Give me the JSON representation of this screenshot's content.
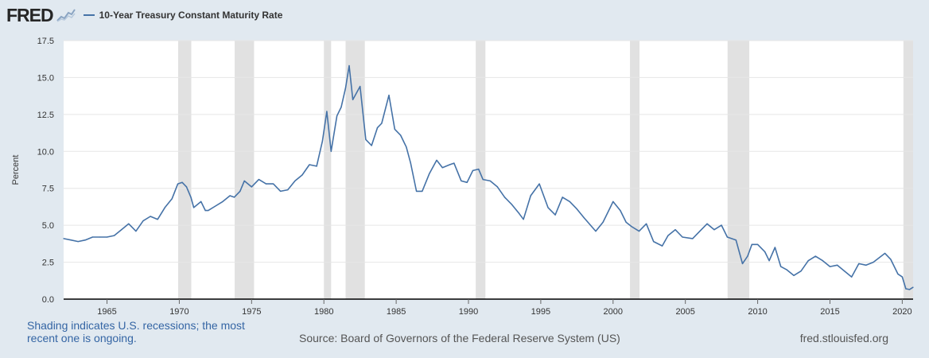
{
  "header": {
    "logo_text": "FRED",
    "logo_icon": "chart-line-icon",
    "series_legend": "10-Year Treasury Constant Maturity Rate"
  },
  "footer": {
    "note": "Shading indicates U.S. recessions; the most recent one is ongoing.",
    "source": "Source: Board of Governors of the Federal Reserve System (US)",
    "url": "fred.stlouisfed.org"
  },
  "colors": {
    "line": "#4572a7",
    "recession": "#e1e1e1",
    "background": "#e1e9f0",
    "plot": "#ffffff",
    "grid": "#e6e6e6"
  },
  "chart_data": {
    "type": "line",
    "title": "",
    "xlabel": "",
    "ylabel": "Percent",
    "xlim": [
      1962.0,
      2020.75
    ],
    "ylim": [
      0,
      17.5
    ],
    "xticks": [
      1965,
      1970,
      1975,
      1980,
      1985,
      1990,
      1995,
      2000,
      2005,
      2010,
      2015,
      2020
    ],
    "yticks": [
      0.0,
      2.5,
      5.0,
      7.5,
      10.0,
      12.5,
      15.0,
      17.5
    ],
    "ytick_labels": [
      "0.0",
      "2.5",
      "5.0",
      "7.5",
      "10.0",
      "12.5",
      "15.0",
      "17.5"
    ],
    "grid": true,
    "legend": "top-left",
    "recessions": [
      [
        1969.92,
        1970.83
      ],
      [
        1973.83,
        1975.17
      ],
      [
        1980.0,
        1980.5
      ],
      [
        1981.5,
        1982.83
      ],
      [
        1990.5,
        1991.17
      ],
      [
        2001.17,
        2001.83
      ],
      [
        2007.92,
        2009.42
      ],
      [
        2020.08,
        2020.75
      ]
    ],
    "series": [
      {
        "name": "10-Year Treasury Constant Maturity Rate",
        "x": [
          1962.0,
          1962.5,
          1963.0,
          1963.5,
          1964.0,
          1964.5,
          1965.0,
          1965.5,
          1966.0,
          1966.5,
          1967.0,
          1967.5,
          1968.0,
          1968.5,
          1969.0,
          1969.5,
          1969.9,
          1970.2,
          1970.5,
          1970.8,
          1971.0,
          1971.5,
          1971.8,
          1972.0,
          1972.5,
          1973.0,
          1973.5,
          1973.8,
          1974.2,
          1974.5,
          1975.0,
          1975.5,
          1976.0,
          1976.5,
          1977.0,
          1977.5,
          1978.0,
          1978.5,
          1979.0,
          1979.5,
          1979.9,
          1980.2,
          1980.5,
          1980.9,
          1981.2,
          1981.5,
          1981.75,
          1982.0,
          1982.5,
          1982.9,
          1983.3,
          1983.7,
          1984.0,
          1984.5,
          1984.9,
          1985.3,
          1985.7,
          1986.0,
          1986.4,
          1986.8,
          1987.3,
          1987.8,
          1988.2,
          1988.7,
          1989.0,
          1989.5,
          1989.9,
          1990.3,
          1990.7,
          1991.0,
          1991.5,
          1992.0,
          1992.5,
          1993.0,
          1993.5,
          1993.8,
          1994.3,
          1994.9,
          1995.5,
          1996.0,
          1996.5,
          1997.0,
          1997.5,
          1998.0,
          1998.8,
          1999.3,
          1999.8,
          2000.0,
          2000.5,
          2000.9,
          2001.3,
          2001.8,
          2002.3,
          2002.8,
          2003.4,
          2003.8,
          2004.3,
          2004.8,
          2005.5,
          2006.0,
          2006.5,
          2007.0,
          2007.5,
          2007.9,
          2008.5,
          2008.95,
          2009.3,
          2009.6,
          2010.0,
          2010.5,
          2010.8,
          2011.2,
          2011.6,
          2012.0,
          2012.5,
          2013.0,
          2013.5,
          2014.0,
          2014.5,
          2015.0,
          2015.5,
          2016.0,
          2016.5,
          2017.0,
          2017.5,
          2018.0,
          2018.8,
          2019.2,
          2019.7,
          2020.0,
          2020.25,
          2020.5,
          2020.75
        ],
        "values": [
          4.1,
          4.0,
          3.9,
          4.0,
          4.2,
          4.2,
          4.2,
          4.3,
          4.7,
          5.1,
          4.6,
          5.3,
          5.6,
          5.4,
          6.2,
          6.8,
          7.8,
          7.9,
          7.6,
          6.9,
          6.2,
          6.6,
          6.0,
          6.0,
          6.3,
          6.6,
          7.0,
          6.9,
          7.3,
          8.0,
          7.6,
          8.1,
          7.8,
          7.8,
          7.3,
          7.4,
          8.0,
          8.4,
          9.1,
          9.0,
          10.7,
          12.7,
          10.0,
          12.4,
          13.0,
          14.3,
          15.8,
          13.5,
          14.4,
          10.8,
          10.4,
          11.6,
          11.9,
          13.8,
          11.5,
          11.1,
          10.3,
          9.2,
          7.3,
          7.3,
          8.5,
          9.4,
          8.9,
          9.1,
          9.2,
          8.0,
          7.9,
          8.7,
          8.8,
          8.1,
          8.0,
          7.6,
          6.9,
          6.4,
          5.8,
          5.4,
          7.0,
          7.8,
          6.2,
          5.7,
          6.9,
          6.6,
          6.1,
          5.5,
          4.6,
          5.2,
          6.2,
          6.6,
          6.0,
          5.2,
          4.9,
          4.6,
          5.1,
          3.9,
          3.6,
          4.3,
          4.7,
          4.2,
          4.1,
          4.6,
          5.1,
          4.7,
          5.0,
          4.2,
          4.0,
          2.4,
          2.9,
          3.7,
          3.7,
          3.2,
          2.6,
          3.5,
          2.2,
          2.0,
          1.6,
          1.9,
          2.6,
          2.9,
          2.6,
          2.2,
          2.3,
          1.9,
          1.5,
          2.4,
          2.3,
          2.5,
          3.1,
          2.7,
          1.7,
          1.5,
          0.7,
          0.65,
          0.8
        ]
      }
    ]
  }
}
